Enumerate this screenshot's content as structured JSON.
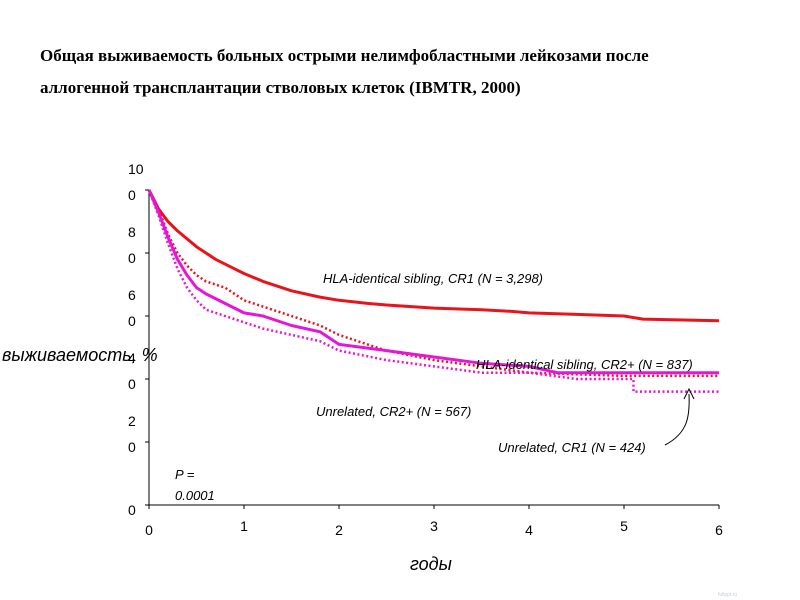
{
  "title": {
    "line1": "Общая выживаемость больных острыми нелимфобластными лейкозами после",
    "line2": "аллогенной трансплантации стволовых клеток (IBMTR, 2000)"
  },
  "watermark": "fullppt.ru",
  "chart_data": {
    "type": "line",
    "xlabel": "годы",
    "ylabel": "выживаемость, %",
    "xlim": [
      0,
      6
    ],
    "ylim": [
      0,
      100
    ],
    "x_ticks": [
      "0",
      "1",
      "2",
      "3",
      "4",
      "5",
      "6"
    ],
    "y_ticks": [
      {
        "value": 0,
        "lines": [
          "0"
        ]
      },
      {
        "value": 20,
        "lines": [
          "2",
          "0"
        ]
      },
      {
        "value": 40,
        "lines": [
          "4",
          "0"
        ]
      },
      {
        "value": 60,
        "lines": [
          "6",
          "0"
        ]
      },
      {
        "value": 80,
        "lines": [
          "8",
          "0"
        ]
      },
      {
        "value": 100,
        "lines": [
          "10",
          "0"
        ]
      }
    ],
    "grid": false,
    "legend": "none",
    "annotation_pvalue": {
      "line1": "P =",
      "line2": "0.0001"
    },
    "series": [
      {
        "name": "HLA-identical sibling, CR1 (N = 3,298)",
        "color": "#e8141b",
        "style": "solid",
        "points": [
          [
            0,
            100
          ],
          [
            0.05,
            97
          ],
          [
            0.1,
            94
          ],
          [
            0.2,
            90
          ],
          [
            0.3,
            87
          ],
          [
            0.5,
            82
          ],
          [
            0.7,
            78
          ],
          [
            0.9,
            75
          ],
          [
            1.0,
            73.5
          ],
          [
            1.2,
            71
          ],
          [
            1.5,
            68
          ],
          [
            1.8,
            66
          ],
          [
            2.0,
            65
          ],
          [
            2.3,
            64
          ],
          [
            2.5,
            63.5
          ],
          [
            3.0,
            62.5
          ],
          [
            3.5,
            62
          ],
          [
            3.8,
            61.5
          ],
          [
            4.0,
            61
          ],
          [
            4.5,
            60.5
          ],
          [
            5.0,
            60
          ],
          [
            5.2,
            59
          ],
          [
            6.0,
            58.5
          ]
        ]
      },
      {
        "name": "HLA-identical sibling, CR2+ (N = 837)",
        "color": "#e8141b",
        "style": "dotted",
        "points": [
          [
            0,
            100
          ],
          [
            0.1,
            94
          ],
          [
            0.2,
            86
          ],
          [
            0.3,
            80
          ],
          [
            0.4,
            76
          ],
          [
            0.5,
            73
          ],
          [
            0.6,
            71
          ],
          [
            0.8,
            69
          ],
          [
            0.9,
            67
          ],
          [
            1.0,
            65
          ],
          [
            1.2,
            63
          ],
          [
            1.5,
            60
          ],
          [
            1.8,
            57
          ],
          [
            2.0,
            54
          ],
          [
            2.3,
            51
          ],
          [
            2.5,
            49
          ],
          [
            3.0,
            46
          ],
          [
            3.5,
            44
          ],
          [
            4.0,
            42
          ],
          [
            5.0,
            41
          ],
          [
            6.0,
            41
          ]
        ]
      },
      {
        "name": "Unrelated, CR2+ (N = 567)",
        "color": "#e416d8",
        "style": "solid",
        "points": [
          [
            0,
            100
          ],
          [
            0.1,
            93
          ],
          [
            0.2,
            85
          ],
          [
            0.3,
            78
          ],
          [
            0.4,
            73
          ],
          [
            0.5,
            69
          ],
          [
            0.6,
            67
          ],
          [
            0.8,
            64
          ],
          [
            1.0,
            61
          ],
          [
            1.2,
            60
          ],
          [
            1.5,
            57
          ],
          [
            1.8,
            55
          ],
          [
            2.0,
            51
          ],
          [
            2.5,
            49
          ],
          [
            3.0,
            47
          ],
          [
            3.5,
            45
          ],
          [
            4.0,
            44
          ],
          [
            4.3,
            42
          ],
          [
            5.0,
            42
          ],
          [
            6.0,
            42
          ]
        ]
      },
      {
        "name": "Unrelated, CR1 (N = 424)",
        "color": "#e416d8",
        "style": "dotted",
        "points": [
          [
            0,
            100
          ],
          [
            0.1,
            92
          ],
          [
            0.2,
            83
          ],
          [
            0.3,
            75
          ],
          [
            0.4,
            69
          ],
          [
            0.5,
            65
          ],
          [
            0.6,
            62
          ],
          [
            0.8,
            60
          ],
          [
            1.0,
            58
          ],
          [
            1.2,
            56
          ],
          [
            1.5,
            54
          ],
          [
            1.8,
            52
          ],
          [
            2.0,
            49
          ],
          [
            2.5,
            46
          ],
          [
            3.0,
            44
          ],
          [
            3.5,
            42
          ],
          [
            4.0,
            42
          ],
          [
            4.5,
            40
          ],
          [
            5.1,
            40
          ],
          [
            5.1,
            36
          ],
          [
            6.0,
            36
          ]
        ]
      }
    ]
  }
}
